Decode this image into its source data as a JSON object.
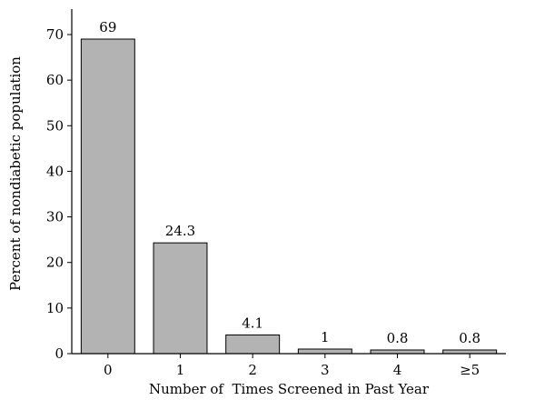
{
  "chart_data": {
    "type": "bar",
    "categories": [
      "0",
      "1",
      "2",
      "3",
      "4",
      "≥5"
    ],
    "values": [
      69,
      24.3,
      4.1,
      1,
      0.8,
      0.8
    ],
    "data_labels": [
      "69",
      "24.3",
      "4.1",
      "1",
      "0.8",
      "0.8"
    ],
    "xlabel": "Number of  Times Screened in Past Year",
    "ylabel": "Percent of nondiabetic population",
    "ylim": [
      0,
      70
    ],
    "yticks": [
      0,
      10,
      20,
      30,
      40,
      50,
      60,
      70
    ],
    "grid": false,
    "legend": "none",
    "bar_color": "#b3b3b3",
    "bar_edge_color": "#000000"
  }
}
